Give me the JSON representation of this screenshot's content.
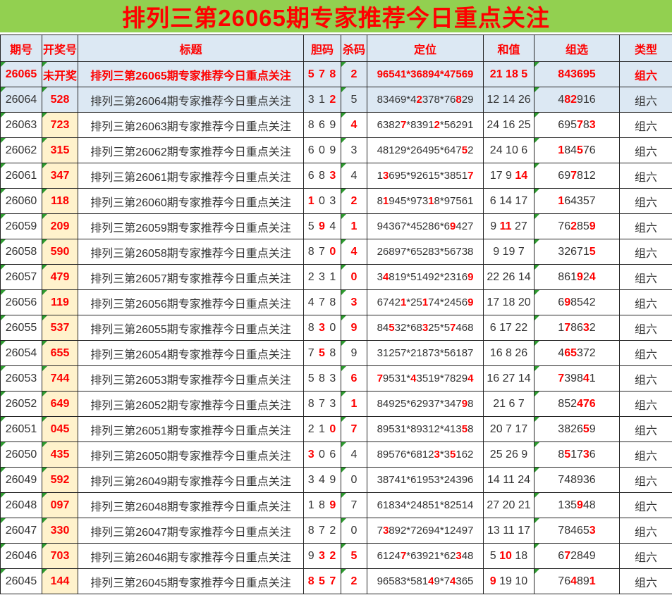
{
  "banner": {
    "title": "排列三第26065期专家推荐今日重点关注",
    "bg_color": "#92D050",
    "text_color": "#FF0000"
  },
  "colors": {
    "accent_red": "#FE0000",
    "highlight_blue": "#DCE8F3",
    "highlight_yellow": "#FFF2CC",
    "banner_green": "#92D050",
    "triangle_green": "#2E9B30",
    "text_dark": "#333333"
  },
  "icons": {
    "comment_triangle": {
      "name": "comment-indicator-icon",
      "shape": "top-left-corner-triangle",
      "color": "#2E9B30"
    }
  },
  "table": {
    "columns": [
      "期号",
      "开奖号",
      "标题",
      "胆码",
      "杀码",
      "定位",
      "和值",
      "组选",
      "类型"
    ],
    "note": "Text wrapped in ⟦ ⟧ is rendered red+bold",
    "rows": [
      {
        "period": "26065",
        "result": "未开奖",
        "title": "排列三第26065期专家推荐今日重点关注",
        "dan": "5 7 8",
        "kill": "2",
        "position": "96541*36894*47569",
        "sum": "21 18 5",
        "group": "843695",
        "type": "组六",
        "featured": true,
        "shaded": true
      },
      {
        "period": "26064",
        "result": "528",
        "title": "排列三第26064期专家推荐今日重点关注",
        "dan": "3 1 ⟦2⟧",
        "kill": "5",
        "position": "83469*4⟦2⟧378*76⟦8⟧29",
        "sum": "12 14 26",
        "group": "4⟦82⟧916",
        "type": "组六",
        "featured": false,
        "shaded": true
      },
      {
        "period": "26063",
        "result": "723",
        "title": "排列三第26063期专家推荐今日重点关注",
        "dan": "8 6 9",
        "kill": "⟦4⟧",
        "position": "6382⟦7⟧*8391⟦2⟧*56291",
        "sum": "24 16 25",
        "group": "695⟦7⟧8⟦3⟧",
        "type": "组六",
        "featured": false,
        "shaded": false
      },
      {
        "period": "26062",
        "result": "315",
        "title": "排列三第26062期专家推荐今日重点关注",
        "dan": "6 0 9",
        "kill": "3",
        "position": "48129*26495*647⟦5⟧2",
        "sum": "24 10 6",
        "group": "⟦1⟧84⟦5⟧76",
        "type": "组六",
        "featured": false,
        "shaded": false
      },
      {
        "period": "26061",
        "result": "347",
        "title": "排列三第26061期专家推荐今日重点关注",
        "dan": "6 8 ⟦3⟧",
        "kill": "4",
        "position": "1⟦3⟧695*92615*3851⟦7⟧",
        "sum": "17 9 ⟦14⟧",
        "group": "69⟦7⟧812",
        "type": "组六",
        "featured": false,
        "shaded": false
      },
      {
        "period": "26060",
        "result": "118",
        "title": "排列三第26060期专家推荐今日重点关注",
        "dan": "⟦1⟧ 0 3",
        "kill": "⟦2⟧",
        "position": "8⟦1⟧945*973⟦1⟧8*97561",
        "sum": "6 14 17",
        "group": "⟦1⟧64357",
        "type": "组六",
        "featured": false,
        "shaded": false
      },
      {
        "period": "26059",
        "result": "209",
        "title": "排列三第26059期专家推荐今日重点关注",
        "dan": "5 ⟦9⟧ 4",
        "kill": "⟦1⟧",
        "position": "94367*45286*6⟦9⟧427",
        "sum": "9 ⟦11⟧ 27",
        "group": "76⟦2⟧85⟦9⟧",
        "type": "组六",
        "featured": false,
        "shaded": false
      },
      {
        "period": "26058",
        "result": "590",
        "title": "排列三第26058期专家推荐今日重点关注",
        "dan": "8 7 ⟦0⟧",
        "kill": "⟦4⟧",
        "position": "26897*65283*56738",
        "sum": "9 19 7",
        "group": "32671⟦5⟧",
        "type": "组六",
        "featured": false,
        "shaded": false
      },
      {
        "period": "26057",
        "result": "479",
        "title": "排列三第26057期专家推荐今日重点关注",
        "dan": "2 3 1",
        "kill": "⟦0⟧",
        "position": "3⟦4⟧819*51492*2316⟦9⟧",
        "sum": "22 26 14",
        "group": "861⟦9⟧2⟦4⟧",
        "type": "组六",
        "featured": false,
        "shaded": false
      },
      {
        "period": "26056",
        "result": "119",
        "title": "排列三第26056期专家推荐今日重点关注",
        "dan": "4 7 8",
        "kill": "⟦3⟧",
        "position": "6742⟦1⟧*25⟦1⟧74*2456⟦9⟧",
        "sum": "17 18 20",
        "group": "6⟦9⟧8542",
        "type": "组六",
        "featured": false,
        "shaded": false
      },
      {
        "period": "26055",
        "result": "537",
        "title": "排列三第26055期专家推荐今日重点关注",
        "dan": "8 ⟦3⟧ 0",
        "kill": "⟦9⟧",
        "position": "84⟦5⟧32*68⟦3⟧25*5⟦7⟧468",
        "sum": "6 17 22",
        "group": "1⟦7⟧86⟦3⟧2",
        "type": "组六",
        "featured": false,
        "shaded": false
      },
      {
        "period": "26054",
        "result": "655",
        "title": "排列三第26054期专家推荐今日重点关注",
        "dan": "7 ⟦5⟧ 8",
        "kill": "9",
        "position": "31257*21873*56187",
        "sum": "16 8 26",
        "group": "4⟦65⟧372",
        "type": "组六",
        "featured": false,
        "shaded": false
      },
      {
        "period": "26053",
        "result": "744",
        "title": "排列三第26053期专家推荐今日重点关注",
        "dan": "5 8 3",
        "kill": "⟦6⟧",
        "position": "⟦7⟧9531*⟦4⟧3519*7829⟦4⟧",
        "sum": "16 27 14",
        "group": "⟦7⟧398⟦4⟧1",
        "type": "组六",
        "featured": false,
        "shaded": false
      },
      {
        "period": "26052",
        "result": "649",
        "title": "排列三第26052期专家推荐今日重点关注",
        "dan": "8 7 3",
        "kill": "⟦1⟧",
        "position": "84925*62937*347⟦9⟧8",
        "sum": "21 6 7",
        "group": "852⟦476⟧",
        "type": "组六",
        "featured": false,
        "shaded": false
      },
      {
        "period": "26051",
        "result": "045",
        "title": "排列三第26051期专家推荐今日重点关注",
        "dan": "2 1 ⟦0⟧",
        "kill": "⟦7⟧",
        "position": "89531*89312*413⟦5⟧8",
        "sum": "20 7 17",
        "group": "3826⟦5⟧9",
        "type": "组六",
        "featured": false,
        "shaded": false
      },
      {
        "period": "26050",
        "result": "435",
        "title": "排列三第26050期专家推荐今日重点关注",
        "dan": "⟦3⟧ 0 6",
        "kill": "4",
        "position": "89576*6812⟦3⟧*3⟦5⟧162",
        "sum": "25 26 9",
        "group": "8⟦5⟧17⟦3⟧6",
        "type": "组六",
        "featured": false,
        "shaded": false
      },
      {
        "period": "26049",
        "result": "592",
        "title": "排列三第26049期专家推荐今日重点关注",
        "dan": "3 4 9",
        "kill": "0",
        "position": "38741*61953*24396",
        "sum": "14 11 24",
        "group": "748936",
        "type": "组六",
        "featured": false,
        "shaded": false
      },
      {
        "period": "26048",
        "result": "097",
        "title": "排列三第26048期专家推荐今日重点关注",
        "dan": "1 8 ⟦9⟧",
        "kill": "7",
        "position": "61834*24851*82514",
        "sum": "27 20 21",
        "group": "135⟦9⟧48",
        "type": "组六",
        "featured": false,
        "shaded": false
      },
      {
        "period": "26047",
        "result": "330",
        "title": "排列三第26047期专家推荐今日重点关注",
        "dan": "8 7 2",
        "kill": "0",
        "position": "7⟦3⟧892*72694*12497",
        "sum": "13 11 17",
        "group": "78465⟦3⟧",
        "type": "组六",
        "featured": false,
        "shaded": false
      },
      {
        "period": "26046",
        "result": "703",
        "title": "排列三第26046期专家推荐今日重点关注",
        "dan": "9 ⟦3⟧ ⟦2⟧",
        "kill": "⟦5⟧",
        "position": "6124⟦7⟧*63921*62⟦3⟧48",
        "sum": "5 ⟦10⟧ 18",
        "group": "6⟦7⟧2849",
        "type": "组六",
        "featured": false,
        "shaded": false
      },
      {
        "period": "26045",
        "result": "144",
        "title": "排列三第26045期专家推荐今日重点关注",
        "dan": "⟦8 5 7⟧",
        "kill": "⟦2⟧",
        "position": "96583*581⟦4⟧9*7⟦4⟧365",
        "sum": "⟦9⟧ 19 10",
        "group": "76⟦4⟧89⟦1⟧",
        "type": "组六",
        "featured": false,
        "shaded": false
      }
    ]
  }
}
